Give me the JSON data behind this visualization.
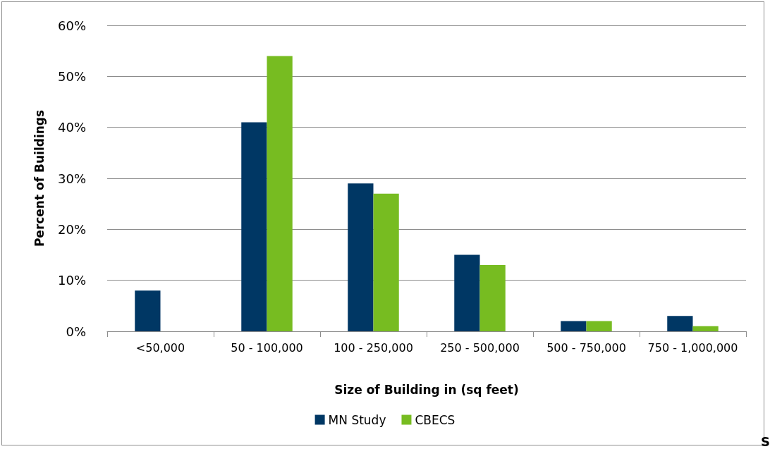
{
  "chart_data": {
    "type": "bar",
    "xlabel": "Size of Building in (sq feet)",
    "ylabel": "Percent of Buildings",
    "categories": [
      "<50,000",
      "50 - 100,000",
      "100 - 250,000",
      "250 - 500,000",
      "500 - 750,000",
      "750 - 1,000,000"
    ],
    "series": [
      {
        "name": "MN Study",
        "color": "#003764",
        "values": [
          8,
          41,
          29,
          15,
          2,
          3
        ]
      },
      {
        "name": "CBECS",
        "color": "#77bc21",
        "values": [
          null,
          54,
          27,
          13,
          2,
          1
        ]
      }
    ],
    "ylim": [
      0,
      60
    ],
    "yticks": [
      {
        "value": 0,
        "label": "0%"
      },
      {
        "value": 10,
        "label": "10%"
      },
      {
        "value": 20,
        "label": "20%"
      },
      {
        "value": 30,
        "label": "30%"
      },
      {
        "value": 40,
        "label": "40%"
      },
      {
        "value": 50,
        "label": "50%"
      },
      {
        "value": 60,
        "label": "60%"
      }
    ],
    "grid": "y",
    "legend": "bottom",
    "annotations": [
      "S"
    ]
  }
}
